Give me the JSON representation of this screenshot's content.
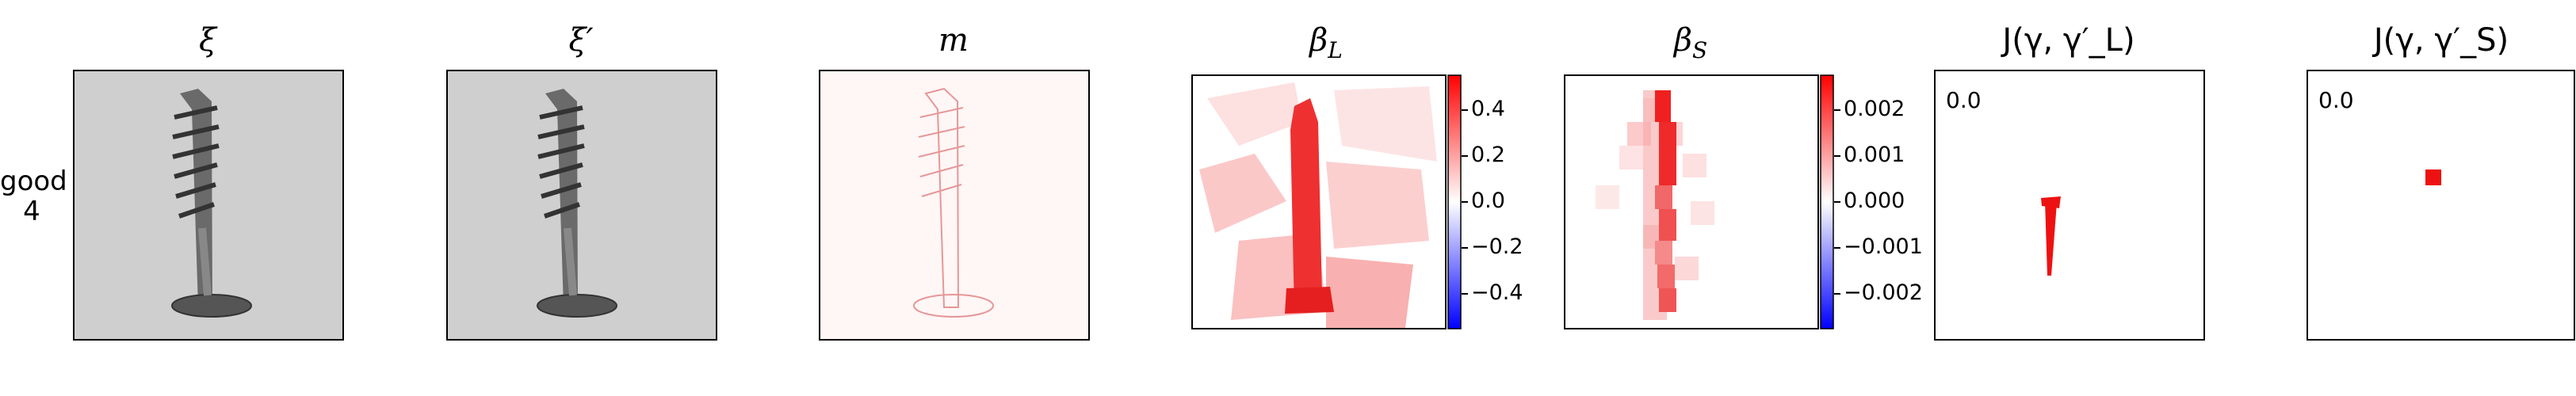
{
  "row_label": {
    "line1": "good",
    "line2": "4"
  },
  "panels": {
    "xi": {
      "title": "ξ"
    },
    "xi_prime": {
      "title": "ξ′"
    },
    "m": {
      "title": "m"
    },
    "beta_L": {
      "title": "β_L",
      "title_main": "β",
      "title_sub": "L",
      "colorbar": {
        "ticks": [
          "0.4",
          "0.2",
          "0.0",
          "−0.2",
          "−0.4"
        ],
        "colors": [
          "#0000ff",
          "#ffffff",
          "#ff0000"
        ]
      }
    },
    "beta_S": {
      "title": "β_S",
      "title_main": "β",
      "title_sub": "S",
      "colorbar": {
        "ticks": [
          "0.002",
          "0.001",
          "0.000",
          "−0.001",
          "−0.002"
        ],
        "colors": [
          "#0000ff",
          "#ffffff",
          "#ff0000"
        ]
      }
    },
    "J_L": {
      "title": "J(γ, γ′_L)",
      "annotation": "0.0"
    },
    "J_S": {
      "title": "J(γ, γ′_S)",
      "annotation": "0.0"
    }
  }
}
